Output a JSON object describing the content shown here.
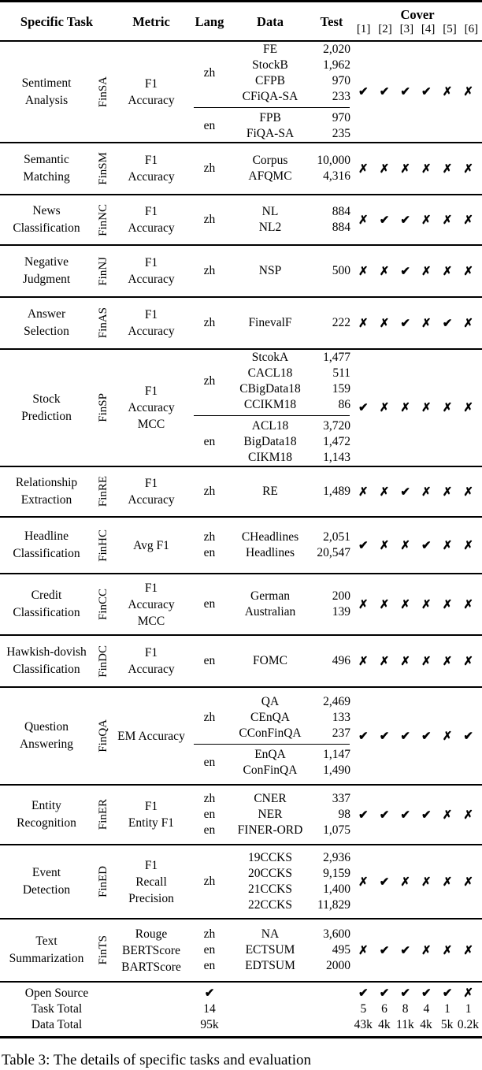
{
  "header": {
    "columns": [
      "Specific Task",
      "Metric",
      "Lang",
      "Data",
      "Test"
    ],
    "cover_title": "Cover",
    "cover_refs": [
      "[1]",
      "[2]",
      "[3]",
      "[4]",
      "[5]",
      "[6]"
    ]
  },
  "symbols": {
    "check": "✔",
    "cross": "✗"
  },
  "rows": [
    {
      "task_lines": [
        "Sentiment",
        "Analysis"
      ],
      "tag": "FinSA",
      "metric_lines": [
        "F1",
        "Accuracy"
      ],
      "divided": true,
      "groups": [
        {
          "lang": "zh",
          "entries": [
            [
              "FE",
              "2,020"
            ],
            [
              "StockB",
              "1,962"
            ],
            [
              "CFPB",
              "970"
            ],
            [
              "CFiQA-SA",
              "233"
            ]
          ]
        },
        {
          "lang": "en",
          "entries": [
            [
              "FPB",
              "970"
            ],
            [
              "FiQA-SA",
              "235"
            ]
          ]
        }
      ],
      "cover": [
        "check",
        "check",
        "check",
        "check",
        "cross",
        "cross"
      ],
      "min_h": 128
    },
    {
      "task_lines": [
        "Semantic",
        "Matching"
      ],
      "tag": "FinSM",
      "metric_lines": [
        "F1",
        "Accuracy"
      ],
      "divided": false,
      "groups": [
        {
          "lang": "zh",
          "entries": [
            [
              "Corpus",
              "10,000"
            ],
            [
              "AFQMC",
              "4,316"
            ]
          ]
        }
      ],
      "cover": [
        "cross",
        "cross",
        "cross",
        "cross",
        "cross",
        "cross"
      ],
      "min_h": 66
    },
    {
      "task_lines": [
        "News",
        "Classification"
      ],
      "tag": "FinNC",
      "metric_lines": [
        "F1",
        "Accuracy"
      ],
      "divided": false,
      "groups": [
        {
          "lang": "zh",
          "entries": [
            [
              "NL",
              "884"
            ],
            [
              "NL2",
              "884"
            ]
          ]
        }
      ],
      "cover": [
        "cross",
        "check",
        "check",
        "cross",
        "cross",
        "cross"
      ],
      "min_h": 64
    },
    {
      "task_lines": [
        "Negative",
        "Judgment"
      ],
      "tag": "FinNJ",
      "metric_lines": [
        "F1",
        "Accuracy"
      ],
      "divided": false,
      "groups": [
        {
          "lang": "zh",
          "entries": [
            [
              "NSP",
              "500"
            ]
          ]
        }
      ],
      "cover": [
        "cross",
        "cross",
        "check",
        "cross",
        "cross",
        "cross"
      ],
      "min_h": 66
    },
    {
      "task_lines": [
        "Answer",
        "Selection"
      ],
      "tag": "FinAS",
      "metric_lines": [
        "F1",
        "Accuracy"
      ],
      "divided": false,
      "groups": [
        {
          "lang": "zh",
          "entries": [
            [
              "FinevalF",
              "222"
            ]
          ]
        }
      ],
      "cover": [
        "cross",
        "cross",
        "check",
        "cross",
        "check",
        "cross"
      ],
      "min_h": 66
    },
    {
      "task_lines": [
        "Stock",
        "Prediction"
      ],
      "tag": "FinSP",
      "metric_lines": [
        "F1",
        "Accuracy",
        "MCC"
      ],
      "divided": true,
      "groups": [
        {
          "lang": "zh",
          "entries": [
            [
              "StcokA",
              "1,477"
            ],
            [
              "CACL18",
              "511"
            ],
            [
              "CBigData18",
              "159"
            ],
            [
              "CCIKM18",
              "86"
            ]
          ]
        },
        {
          "lang": "en",
          "entries": [
            [
              "ACL18",
              "3,720"
            ],
            [
              "BigData18",
              "1,472"
            ],
            [
              "CIKM18",
              "1,143"
            ]
          ]
        }
      ],
      "cover": [
        "check",
        "cross",
        "cross",
        "cross",
        "cross",
        "cross"
      ],
      "min_h": 144
    },
    {
      "task_lines": [
        "Relationship",
        "Extraction"
      ],
      "tag": "FinRE",
      "metric_lines": [
        "F1",
        "Accuracy"
      ],
      "divided": false,
      "groups": [
        {
          "lang": "zh",
          "entries": [
            [
              "RE",
              "1,489"
            ]
          ]
        }
      ],
      "cover": [
        "cross",
        "cross",
        "check",
        "cross",
        "cross",
        "cross"
      ],
      "min_h": 64
    },
    {
      "task_lines": [
        "Headline",
        "Classification"
      ],
      "tag": "FinHC",
      "metric_lines": [
        "Avg F1"
      ],
      "divided": false,
      "groups": [
        {
          "lang": "zh",
          "entries": [
            [
              "CHeadlines",
              "2,051"
            ]
          ]
        },
        {
          "lang": "en",
          "entries": [
            [
              "Headlines",
              "20,547"
            ]
          ]
        }
      ],
      "cover": [
        "check",
        "cross",
        "cross",
        "check",
        "cross",
        "cross"
      ],
      "min_h": 72
    },
    {
      "task_lines": [
        "Credit",
        "Classification"
      ],
      "tag": "FinCC",
      "metric_lines": [
        "F1",
        "Accuracy",
        "MCC"
      ],
      "divided": false,
      "groups": [
        {
          "lang": "en",
          "entries": [
            [
              "German",
              "200"
            ],
            [
              "Australian",
              "139"
            ]
          ]
        }
      ],
      "cover": [
        "cross",
        "cross",
        "cross",
        "cross",
        "cross",
        "cross"
      ],
      "min_h": 78
    },
    {
      "task_lines": [
        "Hawkish-dovish",
        "Classification"
      ],
      "tag": "FinDC",
      "metric_lines": [
        "F1",
        "Accuracy"
      ],
      "divided": false,
      "groups": [
        {
          "lang": "en",
          "entries": [
            [
              "FOMC",
              "496"
            ]
          ]
        }
      ],
      "cover": [
        "cross",
        "cross",
        "cross",
        "cross",
        "cross",
        "cross"
      ],
      "min_h": 66
    },
    {
      "task_lines": [
        "Question",
        "Answering"
      ],
      "tag": "FinQA",
      "metric_lines": [
        "EM Accuracy"
      ],
      "divided": true,
      "groups": [
        {
          "lang": "zh",
          "entries": [
            [
              "QA",
              "2,469"
            ],
            [
              "CEnQA",
              "133"
            ],
            [
              "CConFinQA",
              "237"
            ]
          ]
        },
        {
          "lang": "en",
          "entries": [
            [
              "EnQA",
              "1,147"
            ],
            [
              "ConFinQA",
              "1,490"
            ]
          ]
        }
      ],
      "cover": [
        "check",
        "check",
        "check",
        "check",
        "cross",
        "check"
      ],
      "min_h": 124
    },
    {
      "task_lines": [
        "Entity",
        "Recognition"
      ],
      "tag": "FinER",
      "metric_lines": [
        "F1",
        "Entity F1"
      ],
      "divided": false,
      "groups": [
        {
          "lang": "zh",
          "entries": [
            [
              "CNER",
              "337"
            ]
          ]
        },
        {
          "lang": "en",
          "entries": [
            [
              "NER",
              "98"
            ]
          ]
        },
        {
          "lang": "en",
          "entries": [
            [
              "FINER-ORD",
              "1,075"
            ]
          ]
        }
      ],
      "cover": [
        "check",
        "check",
        "check",
        "check",
        "cross",
        "cross"
      ],
      "min_h": 76
    },
    {
      "task_lines": [
        "Event",
        "Detection"
      ],
      "tag": "FinED",
      "metric_lines": [
        "F1",
        "Recall",
        "Precision"
      ],
      "divided": false,
      "groups": [
        {
          "lang": "zh",
          "entries": [
            [
              "19CCKS",
              "2,936"
            ],
            [
              "20CCKS",
              "9,159"
            ],
            [
              "21CCKS",
              "1,400"
            ],
            [
              "22CCKS",
              "11,829"
            ]
          ]
        }
      ],
      "cover": [
        "cross",
        "check",
        "cross",
        "cross",
        "cross",
        "cross"
      ],
      "min_h": 94
    },
    {
      "task_lines": [
        "Text",
        "Summarization"
      ],
      "tag": "FinTS",
      "metric_lines": [
        "Rouge",
        "BERTScore",
        "BARTScore"
      ],
      "divided": false,
      "groups": [
        {
          "lang": "zh",
          "entries": [
            [
              "NA",
              "3,600"
            ]
          ]
        },
        {
          "lang": "en",
          "entries": [
            [
              "ECTSUM",
              "495"
            ]
          ]
        },
        {
          "lang": "en",
          "entries": [
            [
              "EDTSUM",
              "2000"
            ]
          ]
        }
      ],
      "cover": [
        "cross",
        "check",
        "check",
        "cross",
        "cross",
        "cross"
      ],
      "min_h": 78
    }
  ],
  "footer": {
    "rows": [
      {
        "label": "Open Source",
        "value": "check",
        "cover": [
          "check",
          "check",
          "check",
          "check",
          "check",
          "cross"
        ]
      },
      {
        "label": "Task Total",
        "value": "14",
        "cover": [
          "5",
          "6",
          "8",
          "4",
          "1",
          "1"
        ]
      },
      {
        "label": "Data Total",
        "value": "95k",
        "cover": [
          "43k",
          "4k",
          "11k",
          "4k",
          "5k",
          "0.2k"
        ]
      }
    ]
  },
  "caption": "Table 3: The details of specific tasks and evaluation"
}
